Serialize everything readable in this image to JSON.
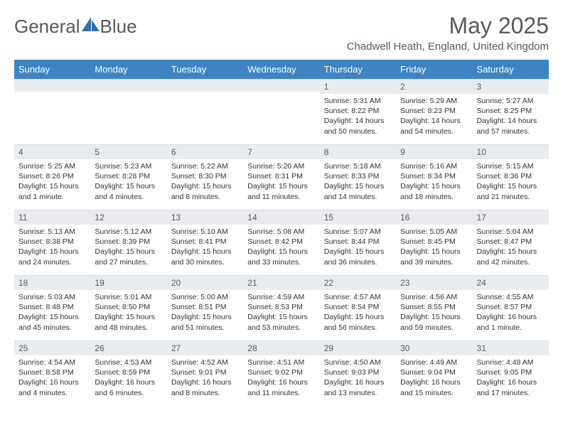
{
  "brand": {
    "part1": "General",
    "part2": "Blue"
  },
  "colors": {
    "header_bg": "#3d84c3",
    "daynum_bg": "#e9ecef",
    "text": "#333333",
    "muted": "#555a5e",
    "logo_accent": "#2f6fb0"
  },
  "title": "May 2025",
  "location": "Chadwell Heath, England, United Kingdom",
  "day_headers": [
    "Sunday",
    "Monday",
    "Tuesday",
    "Wednesday",
    "Thursday",
    "Friday",
    "Saturday"
  ],
  "weeks": [
    [
      null,
      null,
      null,
      null,
      {
        "n": "1",
        "sunrise": "Sunrise: 5:31 AM",
        "sunset": "Sunset: 8:22 PM",
        "daylight": "Daylight: 14 hours and 50 minutes."
      },
      {
        "n": "2",
        "sunrise": "Sunrise: 5:29 AM",
        "sunset": "Sunset: 8:23 PM",
        "daylight": "Daylight: 14 hours and 54 minutes."
      },
      {
        "n": "3",
        "sunrise": "Sunrise: 5:27 AM",
        "sunset": "Sunset: 8:25 PM",
        "daylight": "Daylight: 14 hours and 57 minutes."
      }
    ],
    [
      {
        "n": "4",
        "sunrise": "Sunrise: 5:25 AM",
        "sunset": "Sunset: 8:26 PM",
        "daylight": "Daylight: 15 hours and 1 minute."
      },
      {
        "n": "5",
        "sunrise": "Sunrise: 5:23 AM",
        "sunset": "Sunset: 8:28 PM",
        "daylight": "Daylight: 15 hours and 4 minutes."
      },
      {
        "n": "6",
        "sunrise": "Sunrise: 5:22 AM",
        "sunset": "Sunset: 8:30 PM",
        "daylight": "Daylight: 15 hours and 8 minutes."
      },
      {
        "n": "7",
        "sunrise": "Sunrise: 5:20 AM",
        "sunset": "Sunset: 8:31 PM",
        "daylight": "Daylight: 15 hours and 11 minutes."
      },
      {
        "n": "8",
        "sunrise": "Sunrise: 5:18 AM",
        "sunset": "Sunset: 8:33 PM",
        "daylight": "Daylight: 15 hours and 14 minutes."
      },
      {
        "n": "9",
        "sunrise": "Sunrise: 5:16 AM",
        "sunset": "Sunset: 8:34 PM",
        "daylight": "Daylight: 15 hours and 18 minutes."
      },
      {
        "n": "10",
        "sunrise": "Sunrise: 5:15 AM",
        "sunset": "Sunset: 8:36 PM",
        "daylight": "Daylight: 15 hours and 21 minutes."
      }
    ],
    [
      {
        "n": "11",
        "sunrise": "Sunrise: 5:13 AM",
        "sunset": "Sunset: 8:38 PM",
        "daylight": "Daylight: 15 hours and 24 minutes."
      },
      {
        "n": "12",
        "sunrise": "Sunrise: 5:12 AM",
        "sunset": "Sunset: 8:39 PM",
        "daylight": "Daylight: 15 hours and 27 minutes."
      },
      {
        "n": "13",
        "sunrise": "Sunrise: 5:10 AM",
        "sunset": "Sunset: 8:41 PM",
        "daylight": "Daylight: 15 hours and 30 minutes."
      },
      {
        "n": "14",
        "sunrise": "Sunrise: 5:08 AM",
        "sunset": "Sunset: 8:42 PM",
        "daylight": "Daylight: 15 hours and 33 minutes."
      },
      {
        "n": "15",
        "sunrise": "Sunrise: 5:07 AM",
        "sunset": "Sunset: 8:44 PM",
        "daylight": "Daylight: 15 hours and 36 minutes."
      },
      {
        "n": "16",
        "sunrise": "Sunrise: 5:05 AM",
        "sunset": "Sunset: 8:45 PM",
        "daylight": "Daylight: 15 hours and 39 minutes."
      },
      {
        "n": "17",
        "sunrise": "Sunrise: 5:04 AM",
        "sunset": "Sunset: 8:47 PM",
        "daylight": "Daylight: 15 hours and 42 minutes."
      }
    ],
    [
      {
        "n": "18",
        "sunrise": "Sunrise: 5:03 AM",
        "sunset": "Sunset: 8:48 PM",
        "daylight": "Daylight: 15 hours and 45 minutes."
      },
      {
        "n": "19",
        "sunrise": "Sunrise: 5:01 AM",
        "sunset": "Sunset: 8:50 PM",
        "daylight": "Daylight: 15 hours and 48 minutes."
      },
      {
        "n": "20",
        "sunrise": "Sunrise: 5:00 AM",
        "sunset": "Sunset: 8:51 PM",
        "daylight": "Daylight: 15 hours and 51 minutes."
      },
      {
        "n": "21",
        "sunrise": "Sunrise: 4:59 AM",
        "sunset": "Sunset: 8:53 PM",
        "daylight": "Daylight: 15 hours and 53 minutes."
      },
      {
        "n": "22",
        "sunrise": "Sunrise: 4:57 AM",
        "sunset": "Sunset: 8:54 PM",
        "daylight": "Daylight: 15 hours and 56 minutes."
      },
      {
        "n": "23",
        "sunrise": "Sunrise: 4:56 AM",
        "sunset": "Sunset: 8:55 PM",
        "daylight": "Daylight: 15 hours and 59 minutes."
      },
      {
        "n": "24",
        "sunrise": "Sunrise: 4:55 AM",
        "sunset": "Sunset: 8:57 PM",
        "daylight": "Daylight: 16 hours and 1 minute."
      }
    ],
    [
      {
        "n": "25",
        "sunrise": "Sunrise: 4:54 AM",
        "sunset": "Sunset: 8:58 PM",
        "daylight": "Daylight: 16 hours and 4 minutes."
      },
      {
        "n": "26",
        "sunrise": "Sunrise: 4:53 AM",
        "sunset": "Sunset: 8:59 PM",
        "daylight": "Daylight: 16 hours and 6 minutes."
      },
      {
        "n": "27",
        "sunrise": "Sunrise: 4:52 AM",
        "sunset": "Sunset: 9:01 PM",
        "daylight": "Daylight: 16 hours and 8 minutes."
      },
      {
        "n": "28",
        "sunrise": "Sunrise: 4:51 AM",
        "sunset": "Sunset: 9:02 PM",
        "daylight": "Daylight: 16 hours and 11 minutes."
      },
      {
        "n": "29",
        "sunrise": "Sunrise: 4:50 AM",
        "sunset": "Sunset: 9:03 PM",
        "daylight": "Daylight: 16 hours and 13 minutes."
      },
      {
        "n": "30",
        "sunrise": "Sunrise: 4:49 AM",
        "sunset": "Sunset: 9:04 PM",
        "daylight": "Daylight: 16 hours and 15 minutes."
      },
      {
        "n": "31",
        "sunrise": "Sunrise: 4:48 AM",
        "sunset": "Sunset: 9:05 PM",
        "daylight": "Daylight: 16 hours and 17 minutes."
      }
    ]
  ]
}
